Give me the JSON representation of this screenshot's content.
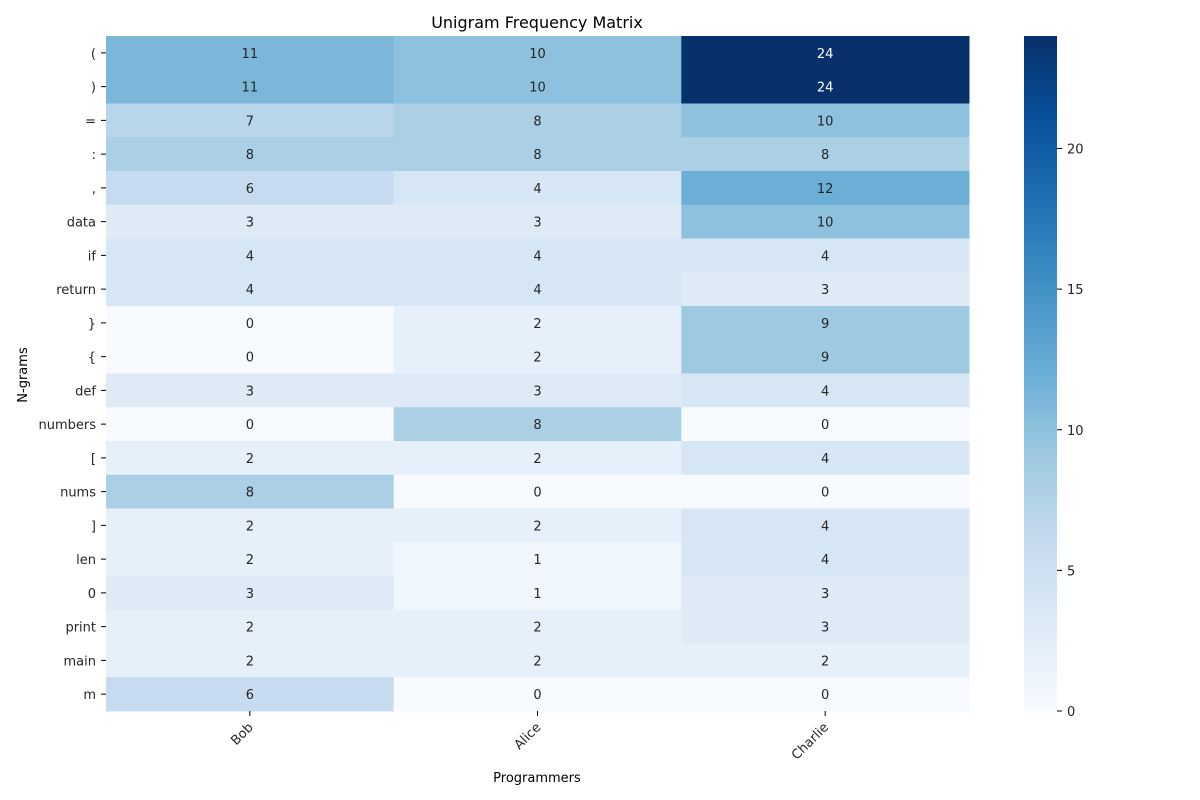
{
  "chart_data": {
    "type": "heatmap",
    "title": "Unigram Frequency Matrix",
    "xlabel": "Programmers",
    "ylabel": "N-grams",
    "x_categories": [
      "Bob",
      "Alice",
      "Charlie"
    ],
    "y_categories": [
      "(",
      ")",
      "=",
      ":",
      ",",
      "data",
      "if",
      "return",
      "}",
      "{",
      "def",
      "numbers",
      "[",
      "nums",
      "]",
      "len",
      "0",
      "print",
      "main",
      "m"
    ],
    "values": [
      [
        11,
        10,
        24
      ],
      [
        11,
        10,
        24
      ],
      [
        7,
        8,
        10
      ],
      [
        8,
        8,
        8
      ],
      [
        6,
        4,
        12
      ],
      [
        3,
        3,
        10
      ],
      [
        4,
        4,
        4
      ],
      [
        4,
        4,
        3
      ],
      [
        0,
        2,
        9
      ],
      [
        0,
        2,
        9
      ],
      [
        3,
        3,
        4
      ],
      [
        0,
        8,
        0
      ],
      [
        2,
        2,
        4
      ],
      [
        8,
        0,
        0
      ],
      [
        2,
        2,
        4
      ],
      [
        2,
        1,
        4
      ],
      [
        3,
        1,
        3
      ],
      [
        2,
        2,
        3
      ],
      [
        2,
        2,
        2
      ],
      [
        6,
        0,
        0
      ]
    ],
    "colormap": "Blues",
    "color_range": [
      0,
      24
    ],
    "colorbar_ticks": [
      0,
      5,
      10,
      15,
      20
    ],
    "annotated": true,
    "grid": false
  }
}
